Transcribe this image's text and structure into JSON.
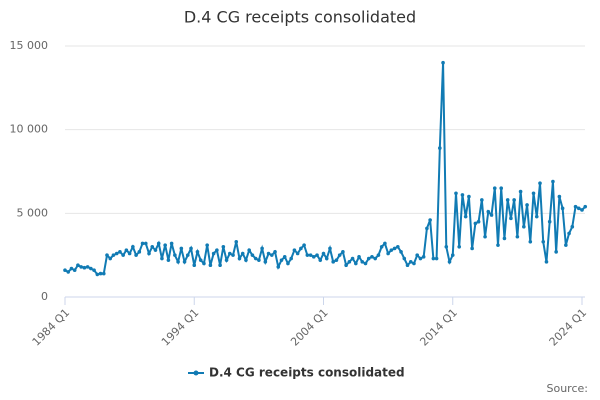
{
  "chart_data": {
    "type": "line",
    "title": "D.4 CG receipts consolidated",
    "categories": [
      "1984 Q1",
      null,
      null,
      null,
      null,
      null,
      null,
      null,
      null,
      null,
      null,
      null,
      null,
      null,
      null,
      null,
      null,
      null,
      null,
      null,
      null,
      null,
      null,
      null,
      null,
      null,
      null,
      null,
      null,
      null,
      null,
      null,
      null,
      null,
      null,
      null,
      null,
      null,
      null,
      null,
      "1994 Q1",
      null,
      null,
      null,
      null,
      null,
      null,
      null,
      null,
      null,
      null,
      null,
      null,
      null,
      null,
      null,
      null,
      null,
      null,
      null,
      null,
      null,
      null,
      null,
      null,
      null,
      null,
      null,
      null,
      null,
      null,
      null,
      null,
      null,
      null,
      null,
      null,
      null,
      null,
      null,
      "2004 Q1",
      null,
      null,
      null,
      null,
      null,
      null,
      null,
      null,
      null,
      null,
      null,
      null,
      null,
      null,
      null,
      null,
      null,
      null,
      null,
      null,
      null,
      null,
      null,
      null,
      null,
      null,
      null,
      null,
      null,
      null,
      null,
      null,
      null,
      null,
      null,
      null,
      null,
      null,
      null,
      "2014 Q1",
      null,
      null,
      null,
      null,
      null,
      null,
      null,
      null,
      null,
      null,
      null,
      null,
      null,
      null,
      null,
      null,
      null,
      null,
      null,
      null,
      null,
      null,
      null,
      null,
      null,
      null,
      null,
      null,
      null,
      null,
      null,
      null,
      null,
      null,
      null,
      null,
      null,
      null,
      null,
      "2024 Q1",
      null
    ],
    "series": [
      {
        "name": "D.4 CG receipts consolidated",
        "color": "#117bb4",
        "values": [
          1600,
          1500,
          1700,
          1600,
          1900,
          1800,
          1750,
          1800,
          1700,
          1600,
          1350,
          1400,
          1400,
          2500,
          2300,
          2500,
          2600,
          2700,
          2500,
          2800,
          2600,
          3000,
          2500,
          2700,
          3200,
          3200,
          2600,
          3000,
          2800,
          3200,
          2300,
          3100,
          2200,
          3200,
          2500,
          2100,
          2900,
          2100,
          2500,
          2900,
          1900,
          2700,
          2200,
          2000,
          3100,
          1900,
          2600,
          2800,
          1900,
          3000,
          2200,
          2600,
          2500,
          3300,
          2300,
          2600,
          2200,
          2800,
          2500,
          2300,
          2200,
          2900,
          2100,
          2600,
          2500,
          2700,
          1800,
          2200,
          2400,
          2000,
          2300,
          2800,
          2600,
          2900,
          3100,
          2500,
          2500,
          2400,
          2500,
          2200,
          2600,
          2300,
          2900,
          2100,
          2200,
          2500,
          2700,
          1900,
          2100,
          2300,
          2000,
          2400,
          2100,
          2000,
          2300,
          2400,
          2300,
          2500,
          3000,
          3200,
          2600,
          2800,
          2900,
          3000,
          2700,
          2300,
          1900,
          2100,
          2000,
          2500,
          2300,
          2400,
          4100,
          4600,
          2300,
          2300,
          8900,
          14000,
          3000,
          2100,
          2500,
          6200,
          3000,
          6100,
          4800,
          6000,
          2900,
          4400,
          4500,
          5800,
          3600,
          5100,
          4900,
          6500,
          3100,
          6500,
          3500,
          5800,
          4700,
          5800,
          3600,
          6300,
          4200,
          5500,
          3300,
          6200,
          4800,
          6800,
          3300,
          2100,
          4500,
          6900,
          2700,
          6000,
          5300,
          3100,
          3800,
          4200,
          5400,
          5300,
          5200,
          5400
        ]
      }
    ],
    "ylim": [
      0,
      15000
    ],
    "yticks": [
      0,
      {
        "value": 5000,
        "label": "5 000"
      },
      {
        "value": 10000,
        "label": "10 000"
      },
      {
        "value": 15000,
        "label": "15 000"
      }
    ],
    "grid": true,
    "legend": "bottom",
    "source": "Source:"
  }
}
